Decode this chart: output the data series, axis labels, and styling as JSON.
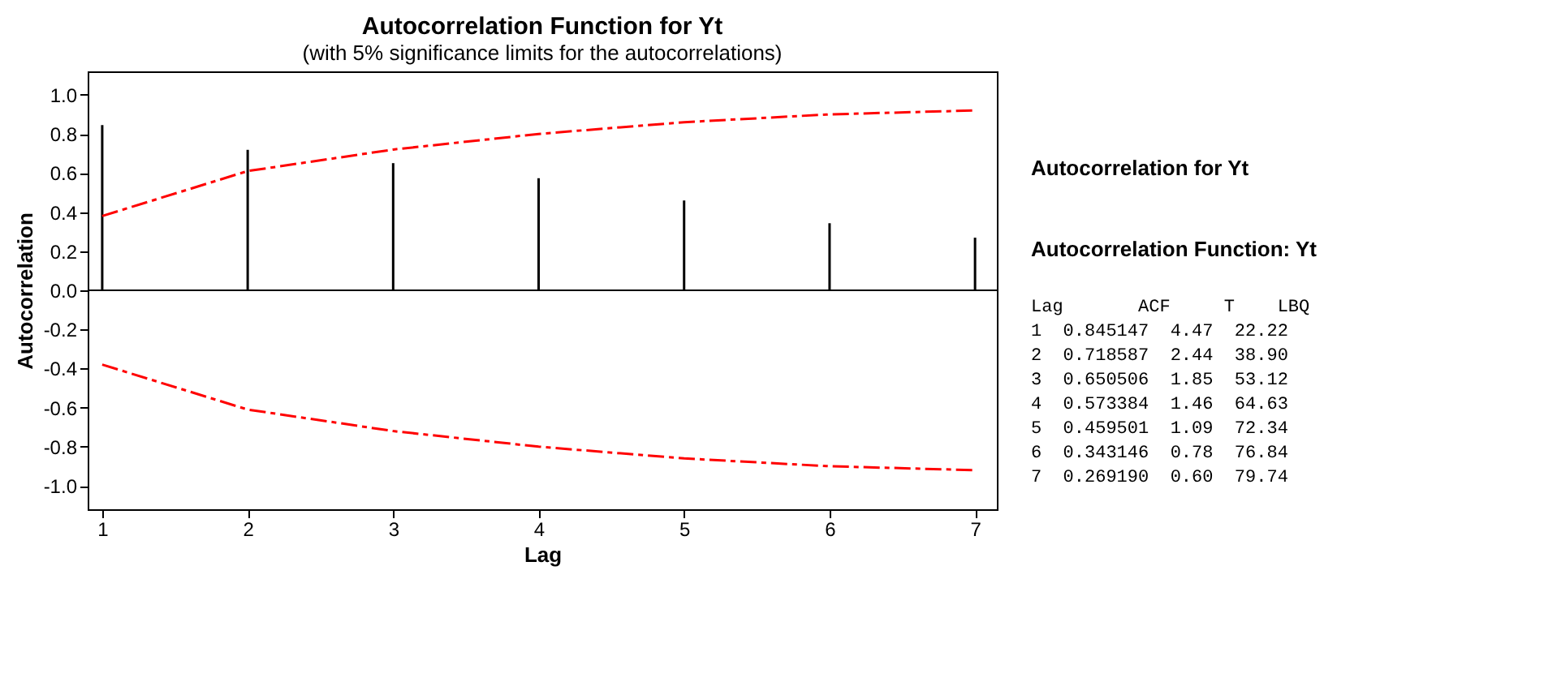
{
  "chart_data": [
    {
      "type": "bar",
      "title": "Autocorrelation Function for Yt",
      "subtitle": "(with 5% significance limits for the autocorrelations)",
      "xlabel": "Lag",
      "ylabel": "Autocorrelation",
      "x": [
        1,
        2,
        3,
        4,
        5,
        6,
        7
      ],
      "series": [
        {
          "type": "bar",
          "color": "#000000",
          "values": [
            0.845147,
            0.718587,
            0.650506,
            0.573384,
            0.459501,
            0.343146,
            0.26919
          ]
        },
        {
          "type": "line",
          "color": "#ff0000",
          "line_style": "dashed",
          "values": [
            0.38,
            0.61,
            0.72,
            0.8,
            0.86,
            0.9,
            0.92
          ]
        },
        {
          "type": "line",
          "color": "#ff0000",
          "line_style": "dashed",
          "values": [
            -0.38,
            -0.61,
            -0.72,
            -0.8,
            -0.86,
            -0.9,
            -0.92
          ]
        }
      ],
      "xlim": [
        0.9,
        7.15
      ],
      "xticks": [
        1,
        2,
        3,
        4,
        5,
        6,
        7
      ],
      "ylim": [
        -1.12,
        1.12
      ],
      "yticks": [
        {
          "value": 1,
          "label": "1.0"
        },
        0.8,
        0.6,
        0.4,
        0.2,
        {
          "value": 0,
          "label": "0.0"
        },
        -0.2,
        -0.4,
        -0.6,
        -0.8,
        {
          "value": -1,
          "label": "-1.0"
        }
      ],
      "ref_lines": [
        {
          "axis": "y",
          "value": 0,
          "color": "#000000"
        }
      ],
      "grid": false
    },
    {
      "type": "other",
      "title": "Autocorrelation for Yt",
      "subtitle": "Autocorrelation Function: Yt",
      "annotations": [
        "Lag ACF T LBQ",
        "1 0.845147 4.47 22.22",
        "2 0.718587 2.44 38.90",
        "3 0.650506 1.85 53.12",
        "4 0.573384 1.46 64.63",
        "5 0.459501 1.09 72.34",
        "6 0.343146 0.78 76.84",
        "7 0.269190 0.60 79.74"
      ]
    }
  ]
}
